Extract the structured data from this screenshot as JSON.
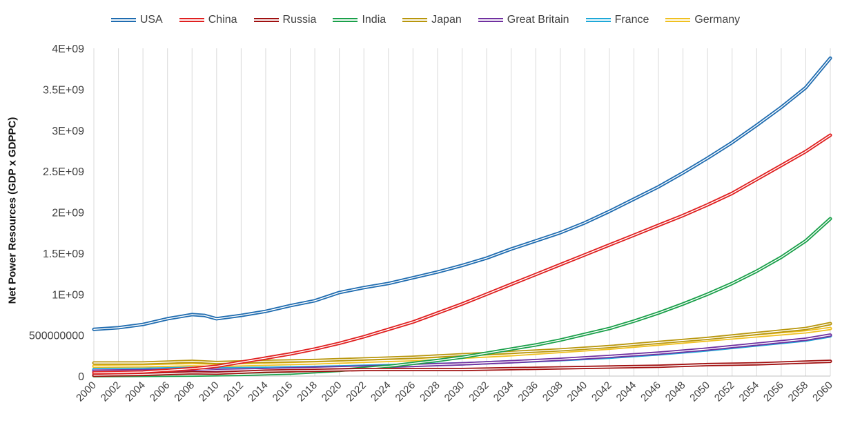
{
  "chart_data": {
    "type": "line",
    "title": "",
    "ylabel": "Net Power Resources (GDP x GDPPC)",
    "xlabel": "",
    "xlim": [
      2000,
      2060
    ],
    "ylim": [
      0,
      4000000000
    ],
    "yticks": [
      {
        "value": 0,
        "label": "0"
      },
      {
        "value": 500000000,
        "label": "500000000"
      },
      {
        "value": 1000000000,
        "label": "1E+09"
      },
      {
        "value": 1500000000,
        "label": "1.5E+09"
      },
      {
        "value": 2000000000,
        "label": "2E+09"
      },
      {
        "value": 2500000000,
        "label": "2.5E+09"
      },
      {
        "value": 3000000000,
        "label": "3E+09"
      },
      {
        "value": 3500000000,
        "label": "3.5E+09"
      },
      {
        "value": 4000000000,
        "label": "4E+09"
      }
    ],
    "xticks": [
      "2000",
      "2002",
      "2004",
      "2006",
      "2008",
      "2010",
      "2012",
      "2014",
      "2016",
      "2018",
      "2020",
      "2022",
      "2024",
      "2026",
      "2028",
      "2030",
      "2032",
      "2034",
      "2036",
      "2038",
      "2040",
      "2042",
      "2044",
      "2046",
      "2048",
      "2050",
      "2052",
      "2054",
      "2056",
      "2058",
      "2060"
    ],
    "grid": {
      "vertical": true,
      "horizontal": false
    },
    "legend": "top",
    "series": [
      {
        "name": "USA",
        "color": "#1f6cb0",
        "points": [
          [
            2000,
            570000000
          ],
          [
            2002,
            590000000
          ],
          [
            2004,
            630000000
          ],
          [
            2006,
            700000000
          ],
          [
            2008,
            750000000
          ],
          [
            2009,
            740000000
          ],
          [
            2010,
            700000000
          ],
          [
            2012,
            740000000
          ],
          [
            2014,
            790000000
          ],
          [
            2016,
            860000000
          ],
          [
            2018,
            920000000
          ],
          [
            2020,
            1020000000
          ],
          [
            2022,
            1080000000
          ],
          [
            2024,
            1130000000
          ],
          [
            2026,
            1200000000
          ],
          [
            2028,
            1270000000
          ],
          [
            2030,
            1350000000
          ],
          [
            2032,
            1440000000
          ],
          [
            2034,
            1550000000
          ],
          [
            2036,
            1650000000
          ],
          [
            2038,
            1750000000
          ],
          [
            2040,
            1870000000
          ],
          [
            2042,
            2010000000
          ],
          [
            2044,
            2160000000
          ],
          [
            2046,
            2310000000
          ],
          [
            2048,
            2480000000
          ],
          [
            2050,
            2660000000
          ],
          [
            2052,
            2850000000
          ],
          [
            2054,
            3060000000
          ],
          [
            2056,
            3280000000
          ],
          [
            2058,
            3520000000
          ],
          [
            2060,
            3880000000
          ]
        ]
      },
      {
        "name": "China",
        "color": "#e02020",
        "points": [
          [
            2000,
            40000000
          ],
          [
            2004,
            50000000
          ],
          [
            2008,
            90000000
          ],
          [
            2010,
            120000000
          ],
          [
            2012,
            170000000
          ],
          [
            2014,
            220000000
          ],
          [
            2016,
            270000000
          ],
          [
            2018,
            330000000
          ],
          [
            2020,
            400000000
          ],
          [
            2022,
            480000000
          ],
          [
            2024,
            570000000
          ],
          [
            2026,
            660000000
          ],
          [
            2028,
            770000000
          ],
          [
            2030,
            880000000
          ],
          [
            2032,
            1000000000
          ],
          [
            2034,
            1120000000
          ],
          [
            2036,
            1240000000
          ],
          [
            2038,
            1360000000
          ],
          [
            2040,
            1480000000
          ],
          [
            2042,
            1600000000
          ],
          [
            2044,
            1720000000
          ],
          [
            2046,
            1840000000
          ],
          [
            2048,
            1960000000
          ],
          [
            2050,
            2090000000
          ],
          [
            2052,
            2230000000
          ],
          [
            2054,
            2400000000
          ],
          [
            2056,
            2570000000
          ],
          [
            2058,
            2740000000
          ],
          [
            2060,
            2940000000
          ]
        ]
      },
      {
        "name": "Russia",
        "color": "#a01010",
        "points": [
          [
            2000,
            10000000
          ],
          [
            2004,
            20000000
          ],
          [
            2008,
            40000000
          ],
          [
            2010,
            35000000
          ],
          [
            2014,
            60000000
          ],
          [
            2018,
            70000000
          ],
          [
            2022,
            80000000
          ],
          [
            2026,
            80000000
          ],
          [
            2030,
            80000000
          ],
          [
            2034,
            90000000
          ],
          [
            2038,
            100000000
          ],
          [
            2042,
            110000000
          ],
          [
            2046,
            120000000
          ],
          [
            2050,
            140000000
          ],
          [
            2054,
            150000000
          ],
          [
            2058,
            170000000
          ],
          [
            2060,
            180000000
          ]
        ]
      },
      {
        "name": "India",
        "color": "#1aa04a",
        "points": [
          [
            2000,
            5000000
          ],
          [
            2004,
            8000000
          ],
          [
            2008,
            12000000
          ],
          [
            2012,
            20000000
          ],
          [
            2016,
            35000000
          ],
          [
            2020,
            70000000
          ],
          [
            2024,
            120000000
          ],
          [
            2028,
            190000000
          ],
          [
            2030,
            230000000
          ],
          [
            2032,
            280000000
          ],
          [
            2034,
            330000000
          ],
          [
            2036,
            380000000
          ],
          [
            2038,
            440000000
          ],
          [
            2040,
            510000000
          ],
          [
            2042,
            580000000
          ],
          [
            2044,
            670000000
          ],
          [
            2046,
            770000000
          ],
          [
            2048,
            880000000
          ],
          [
            2050,
            1000000000
          ],
          [
            2052,
            1130000000
          ],
          [
            2054,
            1280000000
          ],
          [
            2056,
            1450000000
          ],
          [
            2058,
            1650000000
          ],
          [
            2060,
            1920000000
          ]
        ]
      },
      {
        "name": "Japan",
        "color": "#b8960c",
        "points": [
          [
            2000,
            160000000
          ],
          [
            2004,
            160000000
          ],
          [
            2008,
            180000000
          ],
          [
            2010,
            165000000
          ],
          [
            2014,
            180000000
          ],
          [
            2018,
            190000000
          ],
          [
            2022,
            210000000
          ],
          [
            2026,
            230000000
          ],
          [
            2030,
            260000000
          ],
          [
            2034,
            290000000
          ],
          [
            2038,
            320000000
          ],
          [
            2042,
            360000000
          ],
          [
            2046,
            410000000
          ],
          [
            2050,
            460000000
          ],
          [
            2054,
            520000000
          ],
          [
            2058,
            580000000
          ],
          [
            2060,
            640000000
          ]
        ]
      },
      {
        "name": "Great Britain",
        "color": "#7030a0",
        "points": [
          [
            2000,
            60000000
          ],
          [
            2004,
            65000000
          ],
          [
            2008,
            80000000
          ],
          [
            2010,
            70000000
          ],
          [
            2014,
            80000000
          ],
          [
            2018,
            95000000
          ],
          [
            2022,
            110000000
          ],
          [
            2026,
            130000000
          ],
          [
            2030,
            150000000
          ],
          [
            2034,
            175000000
          ],
          [
            2038,
            205000000
          ],
          [
            2042,
            240000000
          ],
          [
            2046,
            280000000
          ],
          [
            2050,
            330000000
          ],
          [
            2054,
            390000000
          ],
          [
            2058,
            450000000
          ],
          [
            2060,
            500000000
          ]
        ]
      },
      {
        "name": "France",
        "color": "#1ea8d8",
        "points": [
          [
            2000,
            80000000
          ],
          [
            2004,
            82000000
          ],
          [
            2008,
            95000000
          ],
          [
            2010,
            88000000
          ],
          [
            2014,
            95000000
          ],
          [
            2018,
            105000000
          ],
          [
            2022,
            120000000
          ],
          [
            2026,
            135000000
          ],
          [
            2030,
            150000000
          ],
          [
            2034,
            175000000
          ],
          [
            2038,
            200000000
          ],
          [
            2042,
            230000000
          ],
          [
            2046,
            270000000
          ],
          [
            2050,
            320000000
          ],
          [
            2054,
            380000000
          ],
          [
            2058,
            440000000
          ],
          [
            2060,
            490000000
          ]
        ]
      },
      {
        "name": "Germany",
        "color": "#f0c020",
        "points": [
          [
            2000,
            120000000
          ],
          [
            2004,
            125000000
          ],
          [
            2008,
            140000000
          ],
          [
            2010,
            130000000
          ],
          [
            2014,
            145000000
          ],
          [
            2018,
            160000000
          ],
          [
            2022,
            180000000
          ],
          [
            2026,
            200000000
          ],
          [
            2030,
            230000000
          ],
          [
            2034,
            260000000
          ],
          [
            2038,
            300000000
          ],
          [
            2042,
            340000000
          ],
          [
            2046,
            390000000
          ],
          [
            2050,
            440000000
          ],
          [
            2054,
            490000000
          ],
          [
            2058,
            540000000
          ],
          [
            2060,
            580000000
          ]
        ]
      }
    ]
  }
}
